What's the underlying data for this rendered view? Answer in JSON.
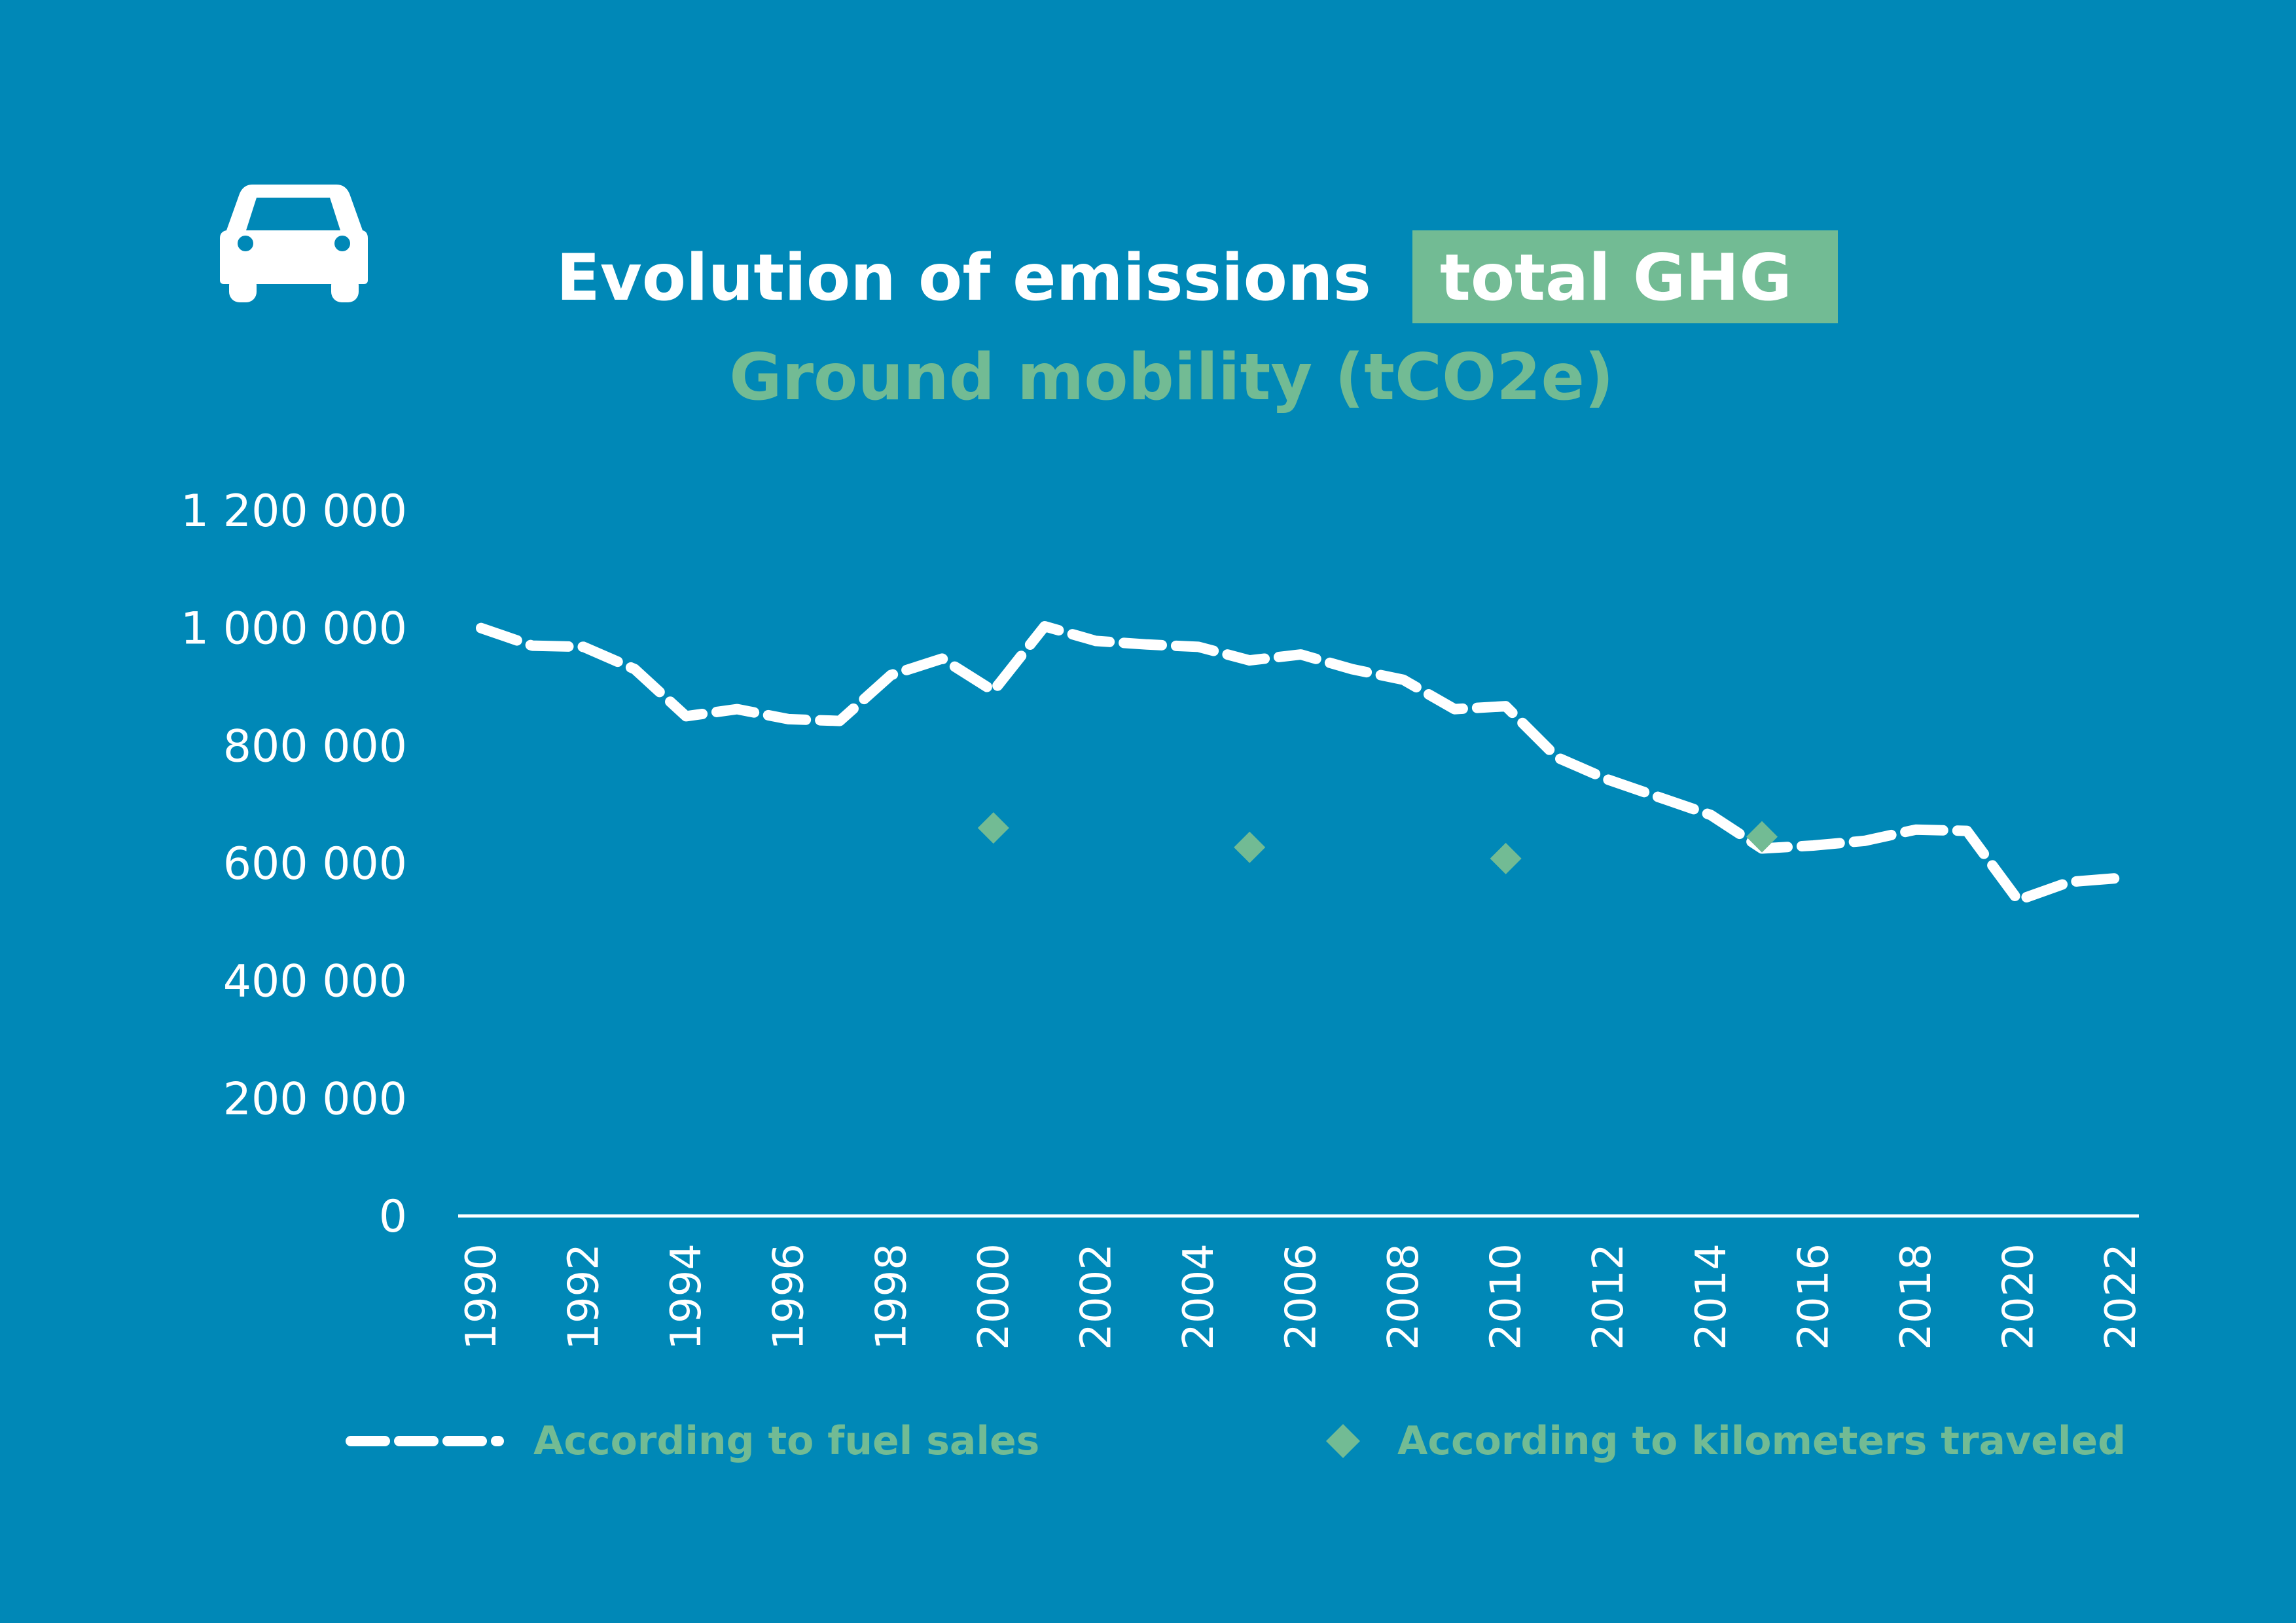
{
  "header": {
    "icon": "car-icon",
    "title": "Evolution of emissions",
    "badge": "total GHG",
    "subtitle": "Ground mobility (tCO2e)"
  },
  "colors": {
    "background": "#0088b7",
    "line": "#ffffff",
    "marker": "#72bb94",
    "badge_bg": "#72bb94"
  },
  "chart_data": {
    "type": "line",
    "title": "Evolution of emissions total GHG — Ground mobility (tCO2e)",
    "xlabel": "",
    "ylabel": "",
    "ylim": [
      0,
      1200000
    ],
    "yticks": [
      0,
      200000,
      400000,
      600000,
      800000,
      1000000,
      1200000
    ],
    "ytick_labels": [
      "0",
      "200 000",
      "400 000",
      "600 000",
      "800 000",
      "1 000 000",
      "1 200 000"
    ],
    "xlim": [
      1990,
      2022
    ],
    "xtick_labels": [
      "1990",
      "1992",
      "1994",
      "1996",
      "1998",
      "2000",
      "2002",
      "2004",
      "2006",
      "2008",
      "2010",
      "2012",
      "2014",
      "2016",
      "2018",
      "2020",
      "2022"
    ],
    "grid": false,
    "legend_position": "bottom",
    "series": [
      {
        "name": "According to fuel sales",
        "style": "dashed-line",
        "x": [
          1990,
          1991,
          1992,
          1993,
          1994,
          1995,
          1996,
          1997,
          1998,
          1999,
          2000,
          2001,
          2002,
          2003,
          2004,
          2005,
          2006,
          2007,
          2008,
          2009,
          2010,
          2011,
          2012,
          2013,
          2014,
          2015,
          2016,
          2017,
          2018,
          2019,
          2020,
          2021,
          2022
        ],
        "values": [
          1000000,
          970000,
          968000,
          930000,
          850000,
          862000,
          845000,
          842000,
          920000,
          948000,
          893000,
          1003000,
          978000,
          972000,
          968000,
          945000,
          955000,
          930000,
          912000,
          862000,
          867000,
          780000,
          742000,
          712000,
          682000,
          625000,
          630000,
          638000,
          657000,
          655000,
          537000,
          568000,
          575000
        ]
      },
      {
        "name": "According to kilometers traveled",
        "style": "diamond-markers",
        "x": [
          2000,
          2005,
          2010,
          2015
        ],
        "values": [
          660000,
          627000,
          608000,
          645000
        ]
      }
    ]
  }
}
